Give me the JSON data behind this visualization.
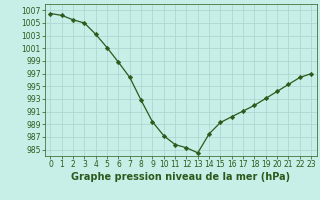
{
  "x": [
    0,
    1,
    2,
    3,
    4,
    5,
    6,
    7,
    8,
    9,
    10,
    11,
    12,
    13,
    14,
    15,
    16,
    17,
    18,
    19,
    20,
    21,
    22,
    23
  ],
  "y": [
    1006.5,
    1006.2,
    1005.5,
    1005.0,
    1003.2,
    1001.1,
    998.8,
    996.4,
    992.8,
    989.4,
    987.2,
    985.8,
    985.3,
    984.5,
    987.5,
    989.3,
    990.2,
    991.1,
    992.0,
    993.1,
    994.2,
    995.3,
    996.4,
    997.0
  ],
  "line_color": "#2d5a1b",
  "marker_color": "#2d5a1b",
  "bg_color": "#c8eee8",
  "grid_color": "#a8d4cc",
  "xlabel": "Graphe pression niveau de la mer (hPa)",
  "ylim": [
    984,
    1008
  ],
  "xlim": [
    -0.5,
    23.5
  ],
  "yticks": [
    985,
    987,
    989,
    991,
    993,
    995,
    997,
    999,
    1001,
    1003,
    1005,
    1007
  ],
  "xticks": [
    0,
    1,
    2,
    3,
    4,
    5,
    6,
    7,
    8,
    9,
    10,
    11,
    12,
    13,
    14,
    15,
    16,
    17,
    18,
    19,
    20,
    21,
    22,
    23
  ],
  "xlabel_fontsize": 7.0,
  "tick_fontsize": 5.5
}
